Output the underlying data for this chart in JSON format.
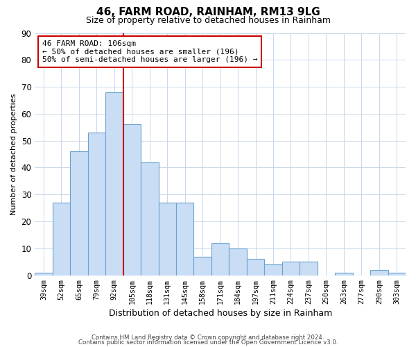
{
  "title": "46, FARM ROAD, RAINHAM, RM13 9LG",
  "subtitle": "Size of property relative to detached houses in Rainham",
  "xlabel": "Distribution of detached houses by size in Rainham",
  "ylabel": "Number of detached properties",
  "bar_values": [
    1,
    27,
    46,
    53,
    68,
    56,
    42,
    27,
    27,
    7,
    12,
    10,
    6,
    4,
    5,
    5,
    0,
    1,
    0,
    2,
    1
  ],
  "bar_labels": [
    "39sqm",
    "52sqm",
    "65sqm",
    "79sqm",
    "92sqm",
    "105sqm",
    "118sqm",
    "131sqm",
    "145sqm",
    "158sqm",
    "171sqm",
    "184sqm",
    "197sqm",
    "211sqm",
    "224sqm",
    "237sqm",
    "250sqm",
    "263sqm",
    "277sqm",
    "290sqm",
    "303sqm"
  ],
  "bar_color": "#c9ddf5",
  "bar_edge_color": "#6ba3d0",
  "vline_x_idx": 5,
  "vline_color": "#cc0000",
  "annotation_title": "46 FARM ROAD: 106sqm",
  "annotation_line1": "← 50% of detached houses are smaller (196)",
  "annotation_line2": "50% of semi-detached houses are larger (196) →",
  "annotation_box_color": "#cc0000",
  "ylim": [
    0,
    90
  ],
  "yticks": [
    0,
    10,
    20,
    30,
    40,
    50,
    60,
    70,
    80,
    90
  ],
  "footer_line1": "Contains HM Land Registry data © Crown copyright and database right 2024.",
  "footer_line2": "Contains public sector information licensed under the Open Government Licence v3.0.",
  "bg_color": "#ffffff",
  "grid_color": "#c8d8eb"
}
